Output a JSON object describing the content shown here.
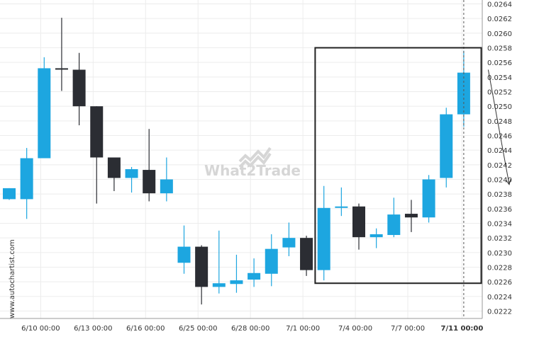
{
  "watermark": {
    "brand": "What2Trade",
    "source_credit": "www.autochartist.com"
  },
  "colors": {
    "bull": "#1da6e0",
    "bear": "#2b2d33",
    "grid": "#ececec",
    "axis_text": "#333333",
    "pattern_box": "#222222",
    "arrow": "#333333",
    "watermark": "#d6d6d6"
  },
  "chart_data": {
    "type": "candlestick",
    "title": "",
    "xlabel": "",
    "ylabel": "",
    "ylim": [
      0.02205,
      0.0264
    ],
    "y_ticks": [
      "0.0222",
      "0.0224",
      "0.0226",
      "0.0228",
      "0.0230",
      "0.0232",
      "0.0234",
      "0.0236",
      "0.0238",
      "0.0240",
      "0.0242",
      "0.0244",
      "0.0246",
      "0.0248",
      "0.0250",
      "0.0252",
      "0.0254",
      "0.0256",
      "0.0258",
      "0.0260",
      "0.0262",
      "0.0264"
    ],
    "x_tick_labels": [
      "6/10 00:00",
      "6/13 00:00",
      "6/16 00:00",
      "6/25 00:00",
      "6/28 00:00",
      "7/1 00:00",
      "7/4 00:00",
      "7/7 00:00",
      "7/11 00:00"
    ],
    "x_tick_candle_index": [
      1.8,
      4.8,
      7.8,
      10.8,
      13.8,
      16.8,
      19.8,
      22.8,
      25.9
    ],
    "candles": [
      {
        "o": 0.02373,
        "h": 0.02388,
        "l": 0.02372,
        "c": 0.02388
      },
      {
        "o": 0.02373,
        "h": 0.02443,
        "l": 0.02346,
        "c": 0.02429
      },
      {
        "o": 0.02429,
        "h": 0.02567,
        "l": 0.02429,
        "c": 0.02552
      },
      {
        "o": 0.02552,
        "h": 0.02621,
        "l": 0.02521,
        "c": 0.02551
      },
      {
        "o": 0.0255,
        "h": 0.02573,
        "l": 0.02474,
        "c": 0.025
      },
      {
        "o": 0.025,
        "h": 0.025,
        "l": 0.02367,
        "c": 0.0243
      },
      {
        "o": 0.0243,
        "h": 0.0243,
        "l": 0.02384,
        "c": 0.02402
      },
      {
        "o": 0.02402,
        "h": 0.02417,
        "l": 0.02382,
        "c": 0.02414
      },
      {
        "o": 0.02413,
        "h": 0.02469,
        "l": 0.0237,
        "c": 0.02381
      },
      {
        "o": 0.02381,
        "h": 0.0243,
        "l": 0.0237,
        "c": 0.024
      },
      {
        "o": 0.02286,
        "h": 0.02337,
        "l": 0.02271,
        "c": 0.02308
      },
      {
        "o": 0.02308,
        "h": 0.0231,
        "l": 0.02229,
        "c": 0.02253
      },
      {
        "o": 0.02253,
        "h": 0.0233,
        "l": 0.02244,
        "c": 0.02258
      },
      {
        "o": 0.02257,
        "h": 0.02297,
        "l": 0.02245,
        "c": 0.02262
      },
      {
        "o": 0.02263,
        "h": 0.02292,
        "l": 0.02253,
        "c": 0.02272
      },
      {
        "o": 0.02271,
        "h": 0.02325,
        "l": 0.02254,
        "c": 0.02305
      },
      {
        "o": 0.02307,
        "h": 0.02341,
        "l": 0.02295,
        "c": 0.0232
      },
      {
        "o": 0.0232,
        "h": 0.02323,
        "l": 0.02268,
        "c": 0.02276
      },
      {
        "o": 0.02276,
        "h": 0.02391,
        "l": 0.02262,
        "c": 0.02361
      },
      {
        "o": 0.02362,
        "h": 0.02389,
        "l": 0.0235,
        "c": 0.02363
      },
      {
        "o": 0.02363,
        "h": 0.02367,
        "l": 0.02304,
        "c": 0.02321
      },
      {
        "o": 0.02321,
        "h": 0.02333,
        "l": 0.02306,
        "c": 0.02325
      },
      {
        "o": 0.02324,
        "h": 0.02375,
        "l": 0.02321,
        "c": 0.02352
      },
      {
        "o": 0.02353,
        "h": 0.02372,
        "l": 0.02328,
        "c": 0.02348
      },
      {
        "o": 0.02348,
        "h": 0.02406,
        "l": 0.02341,
        "c": 0.024
      },
      {
        "o": 0.02402,
        "h": 0.02498,
        "l": 0.02389,
        "c": 0.02489
      },
      {
        "o": 0.02489,
        "h": 0.02576,
        "l": 0.02472,
        "c": 0.02546
      }
    ],
    "pattern_box": {
      "from_candle": 17.5,
      "to_candle": 27.0,
      "top": 0.0258,
      "bottom": 0.02258
    },
    "forecast_arrow": {
      "from_candle": 27.4,
      "to_candle": 28.6,
      "from_price": 0.0255,
      "to_price": 0.02393
    },
    "current_time_line_candle": 26.0
  }
}
